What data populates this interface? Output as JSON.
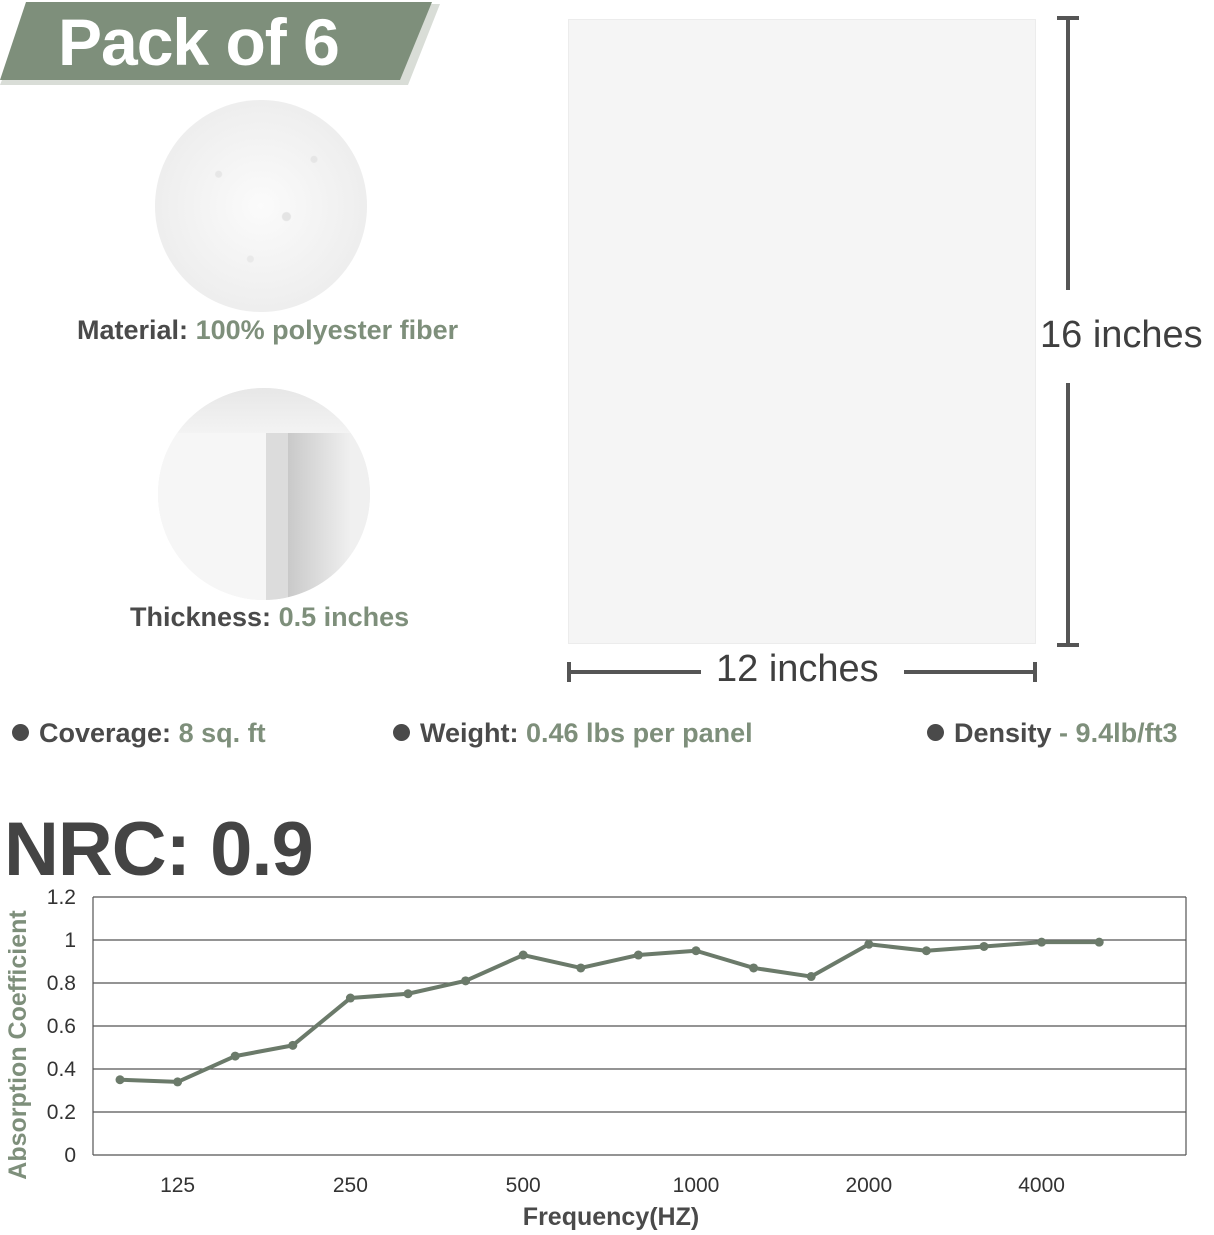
{
  "banner": {
    "text": "Pack of 6"
  },
  "colors": {
    "accent": "#7e8f7b",
    "dark": "#4a4a4a",
    "line": "#6b7a6a"
  },
  "material": {
    "label": "Material:",
    "value": "100% polyester fiber"
  },
  "thickness": {
    "label": "Thickness:",
    "value": "0.5 inches"
  },
  "dimensions": {
    "height": "16 inches",
    "width": "12 inches"
  },
  "specs": {
    "coverage": {
      "label": "Coverage:",
      "value": "8 sq. ft"
    },
    "weight": {
      "label": "Weight:",
      "value": "0.46 lbs per panel"
    },
    "density": {
      "label": "Density",
      "sep": " - ",
      "value": "9.4lb/ft3"
    }
  },
  "nrc": {
    "title": "NRC: 0.9"
  },
  "chart_data": {
    "type": "line",
    "title": "",
    "xlabel": "Frequency(HZ)",
    "ylabel": "Absorption Coefficient",
    "ylim": [
      0,
      1.2
    ],
    "yticks": [
      "0",
      "0.2",
      "0.4",
      "0.6",
      "0.8",
      "1",
      "1.2"
    ],
    "xtick_labels": [
      "125",
      "250",
      "500",
      "1000",
      "2000",
      "4000"
    ],
    "x": [
      "100",
      "125",
      "160",
      "200",
      "250",
      "315",
      "400",
      "500",
      "630",
      "800",
      "1000",
      "1250",
      "1600",
      "2000",
      "2500",
      "3150",
      "4000",
      "5000"
    ],
    "series": [
      {
        "values": [
          0.35,
          0.34,
          0.46,
          0.51,
          0.73,
          0.75,
          0.81,
          0.93,
          0.87,
          0.93,
          0.95,
          0.87,
          0.83,
          0.98,
          0.95,
          0.97,
          0.99,
          0.99
        ]
      }
    ],
    "grid": true
  }
}
